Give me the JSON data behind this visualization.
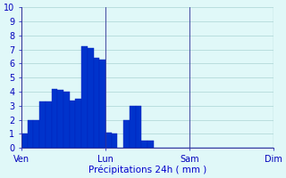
{
  "bar_values": [
    1,
    2,
    2,
    3.3,
    3.3,
    4.2,
    4.1,
    4.0,
    3.4,
    3.5,
    7.2,
    7.1,
    6.4,
    6.3,
    1.1,
    1.0,
    0.0,
    2.0,
    3.0,
    3.0,
    0.5,
    0.5,
    0,
    0,
    0,
    0,
    0,
    0,
    0,
    0,
    0,
    0,
    0,
    0,
    0,
    0,
    0,
    0,
    0,
    0,
    0,
    0
  ],
  "total_slots": 42,
  "day_tick_slots": [
    0,
    14,
    28,
    42
  ],
  "day_labels": [
    "Ven",
    "Lun",
    "Sam",
    "Dim"
  ],
  "xlabel": "Précipitations 24h ( mm )",
  "ylim": [
    0,
    10
  ],
  "yticks": [
    0,
    1,
    2,
    3,
    4,
    5,
    6,
    7,
    8,
    9,
    10
  ],
  "bar_color": "#0033cc",
  "bar_edge_color": "#0022bb",
  "background_color": "#e0f8f8",
  "grid_color": "#aad4d4",
  "axis_color": "#333399",
  "tick_color": "#0000bb",
  "xlabel_color": "#0000cc",
  "xlabel_fontsize": 7.5,
  "tick_fontsize": 7
}
